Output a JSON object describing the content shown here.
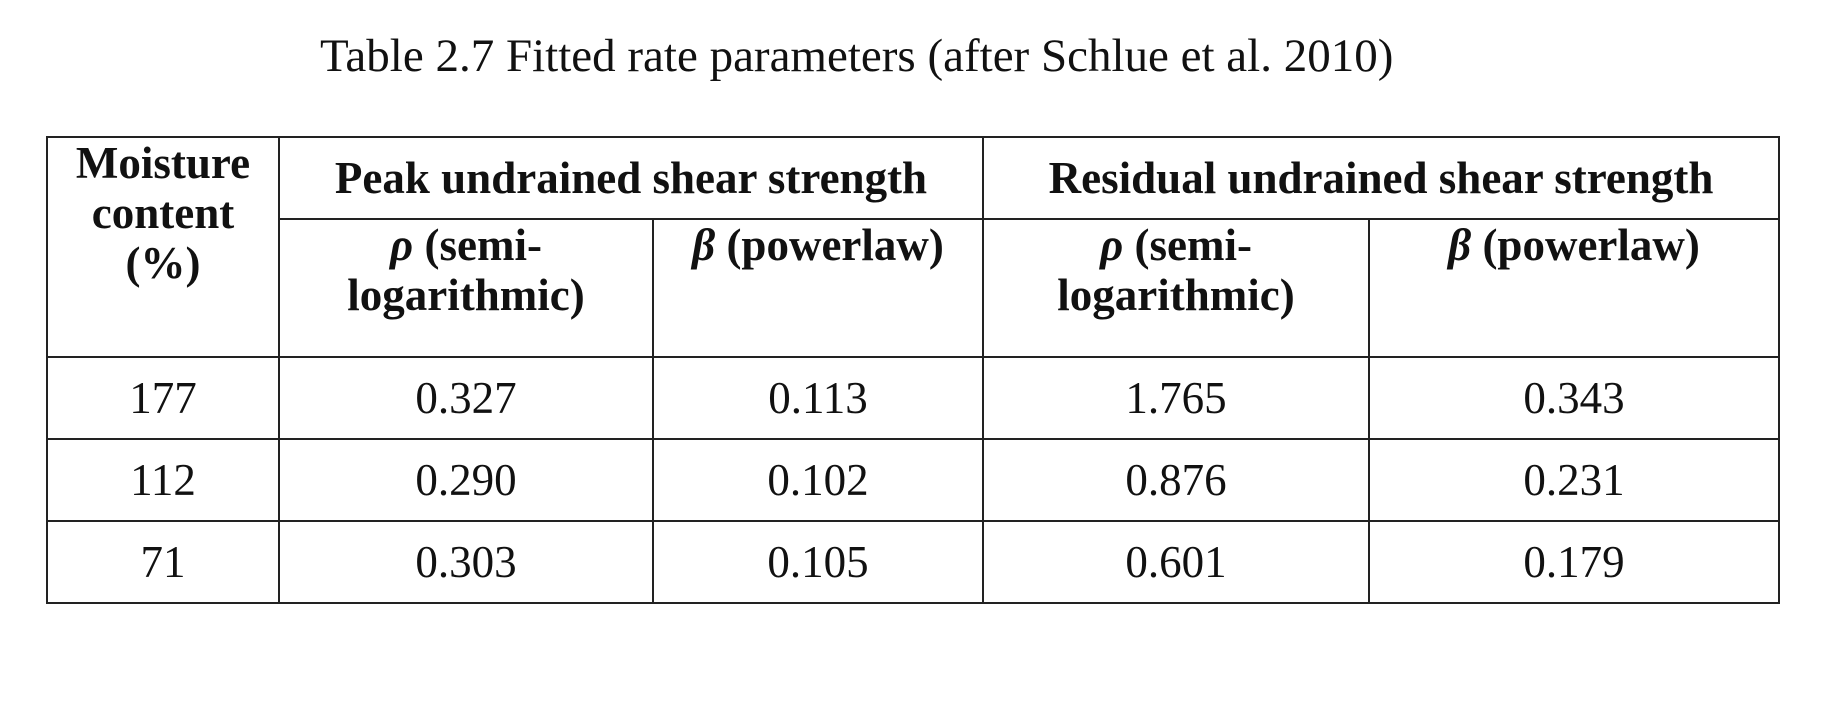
{
  "caption": "Table 2.7 Fitted rate parameters (after Schlue et al. 2010)",
  "header": {
    "moisture_line1": "Moisture",
    "moisture_line2": "content",
    "moisture_line3": "(%)",
    "peak_group": "Peak undrained shear strength",
    "residual_group": "Residual undrained shear strength",
    "rho_symbol": "ρ",
    "rho_line1": " (semi-",
    "rho_line2": "logarithmic)",
    "beta_symbol": "β",
    "beta_label": " (powerlaw)"
  },
  "rows": [
    {
      "moisture": "177",
      "peak_rho": "0.327",
      "peak_beta": "0.113",
      "res_rho": "1.765",
      "res_beta": "0.343"
    },
    {
      "moisture": "112",
      "peak_rho": "0.290",
      "peak_beta": "0.102",
      "res_rho": "0.876",
      "res_beta": "0.231"
    },
    {
      "moisture": "71",
      "peak_rho": "0.303",
      "peak_beta": "0.105",
      "res_rho": "0.601",
      "res_beta": "0.179"
    }
  ]
}
